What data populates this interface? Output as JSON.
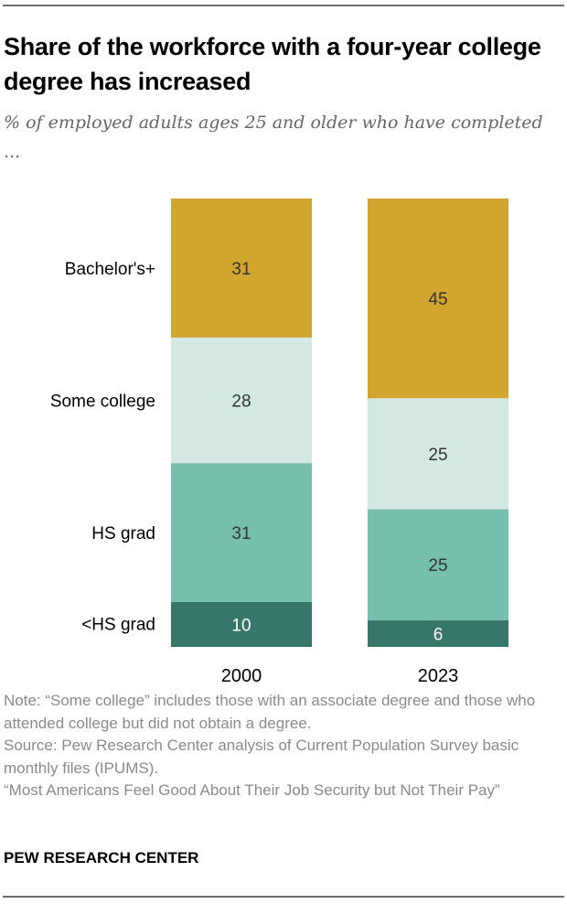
{
  "title": "Share of the workforce with a four-year college degree has increased",
  "subtitle": "% of employed adults ages 25 and older who have completed ...",
  "notes": {
    "note": "Note: “Some college” includes those with an associate degree and those who attended college but did not obtain a degree.",
    "source": "Source: Pew Research Center analysis of Current Population Survey basic monthly files (IPUMS).",
    "report": "“Most Americans Feel Good About Their Job Security but Not Their Pay”"
  },
  "brand": "PEW RESEARCH CENTER",
  "chart_data": {
    "type": "bar",
    "stacked": true,
    "orientation": "vertical",
    "categories": [
      "2000",
      "2023"
    ],
    "series": [
      {
        "name": "<HS grad",
        "values": [
          10,
          6
        ],
        "color": "#37776A",
        "label_color": "#ffffff"
      },
      {
        "name": "HS grad",
        "values": [
          31,
          25
        ],
        "color": "#75BFAC",
        "label_color": "#333333"
      },
      {
        "name": "Some college",
        "values": [
          28,
          25
        ],
        "color": "#D4E8E3",
        "label_color": "#333333"
      },
      {
        "name": "Bachelor's+",
        "values": [
          31,
          45
        ],
        "color": "#D1A52E",
        "label_color": "#333333"
      }
    ],
    "legend": "left, aligned to first bar segments",
    "grid": false,
    "title": "Share of the workforce with a four-year college degree has increased"
  }
}
